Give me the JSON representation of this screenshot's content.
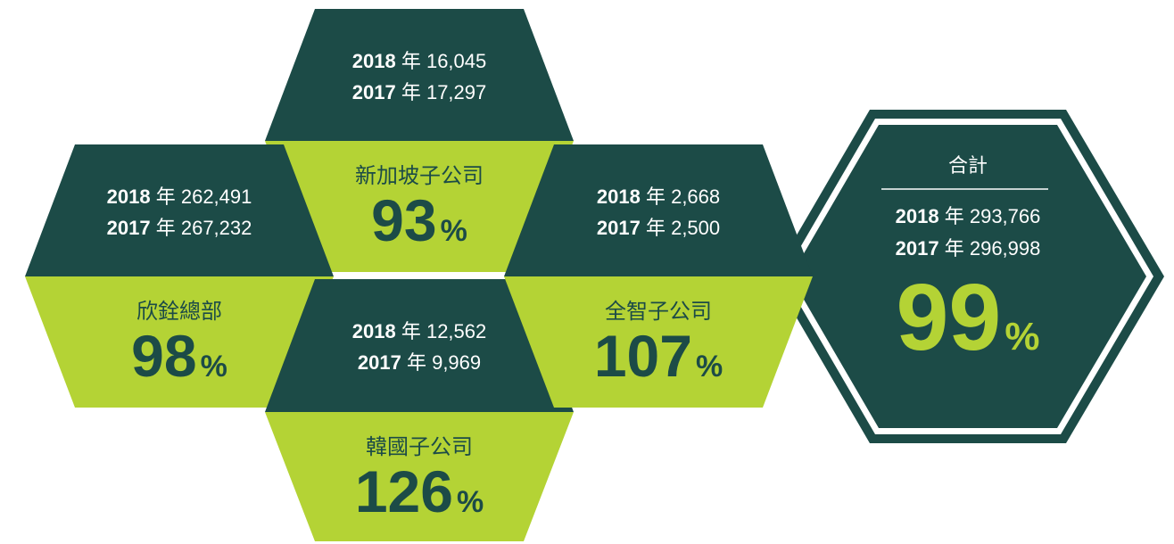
{
  "cells": [
    {
      "name": "新加坡子公司",
      "rows": [
        {
          "year": "2018",
          "unit": "年",
          "value": "16,045"
        },
        {
          "year": "2017",
          "unit": "年",
          "value": "17,297"
        }
      ],
      "percent": "93",
      "percent_sign": "%"
    },
    {
      "name": "欣銓總部",
      "rows": [
        {
          "year": "2018",
          "unit": "年",
          "value": "262,491"
        },
        {
          "year": "2017",
          "unit": "年",
          "value": "267,232"
        }
      ],
      "percent": "98",
      "percent_sign": "%"
    },
    {
      "name": "韓國子公司",
      "rows": [
        {
          "year": "2018",
          "unit": "年",
          "value": "12,562"
        },
        {
          "year": "2017",
          "unit": "年",
          "value": "9,969"
        }
      ],
      "percent": "126",
      "percent_sign": "%"
    },
    {
      "name": "全智子公司",
      "rows": [
        {
          "year": "2018",
          "unit": "年",
          "value": "2,668"
        },
        {
          "year": "2017",
          "unit": "年",
          "value": "2,500"
        }
      ],
      "percent": "107",
      "percent_sign": "%"
    }
  ],
  "total": {
    "name": "合計",
    "rows": [
      {
        "year": "2018",
        "unit": "年",
        "value": "293,766"
      },
      {
        "year": "2017",
        "unit": "年",
        "value": "296,998"
      }
    ],
    "percent": "99",
    "percent_sign": "%"
  }
}
